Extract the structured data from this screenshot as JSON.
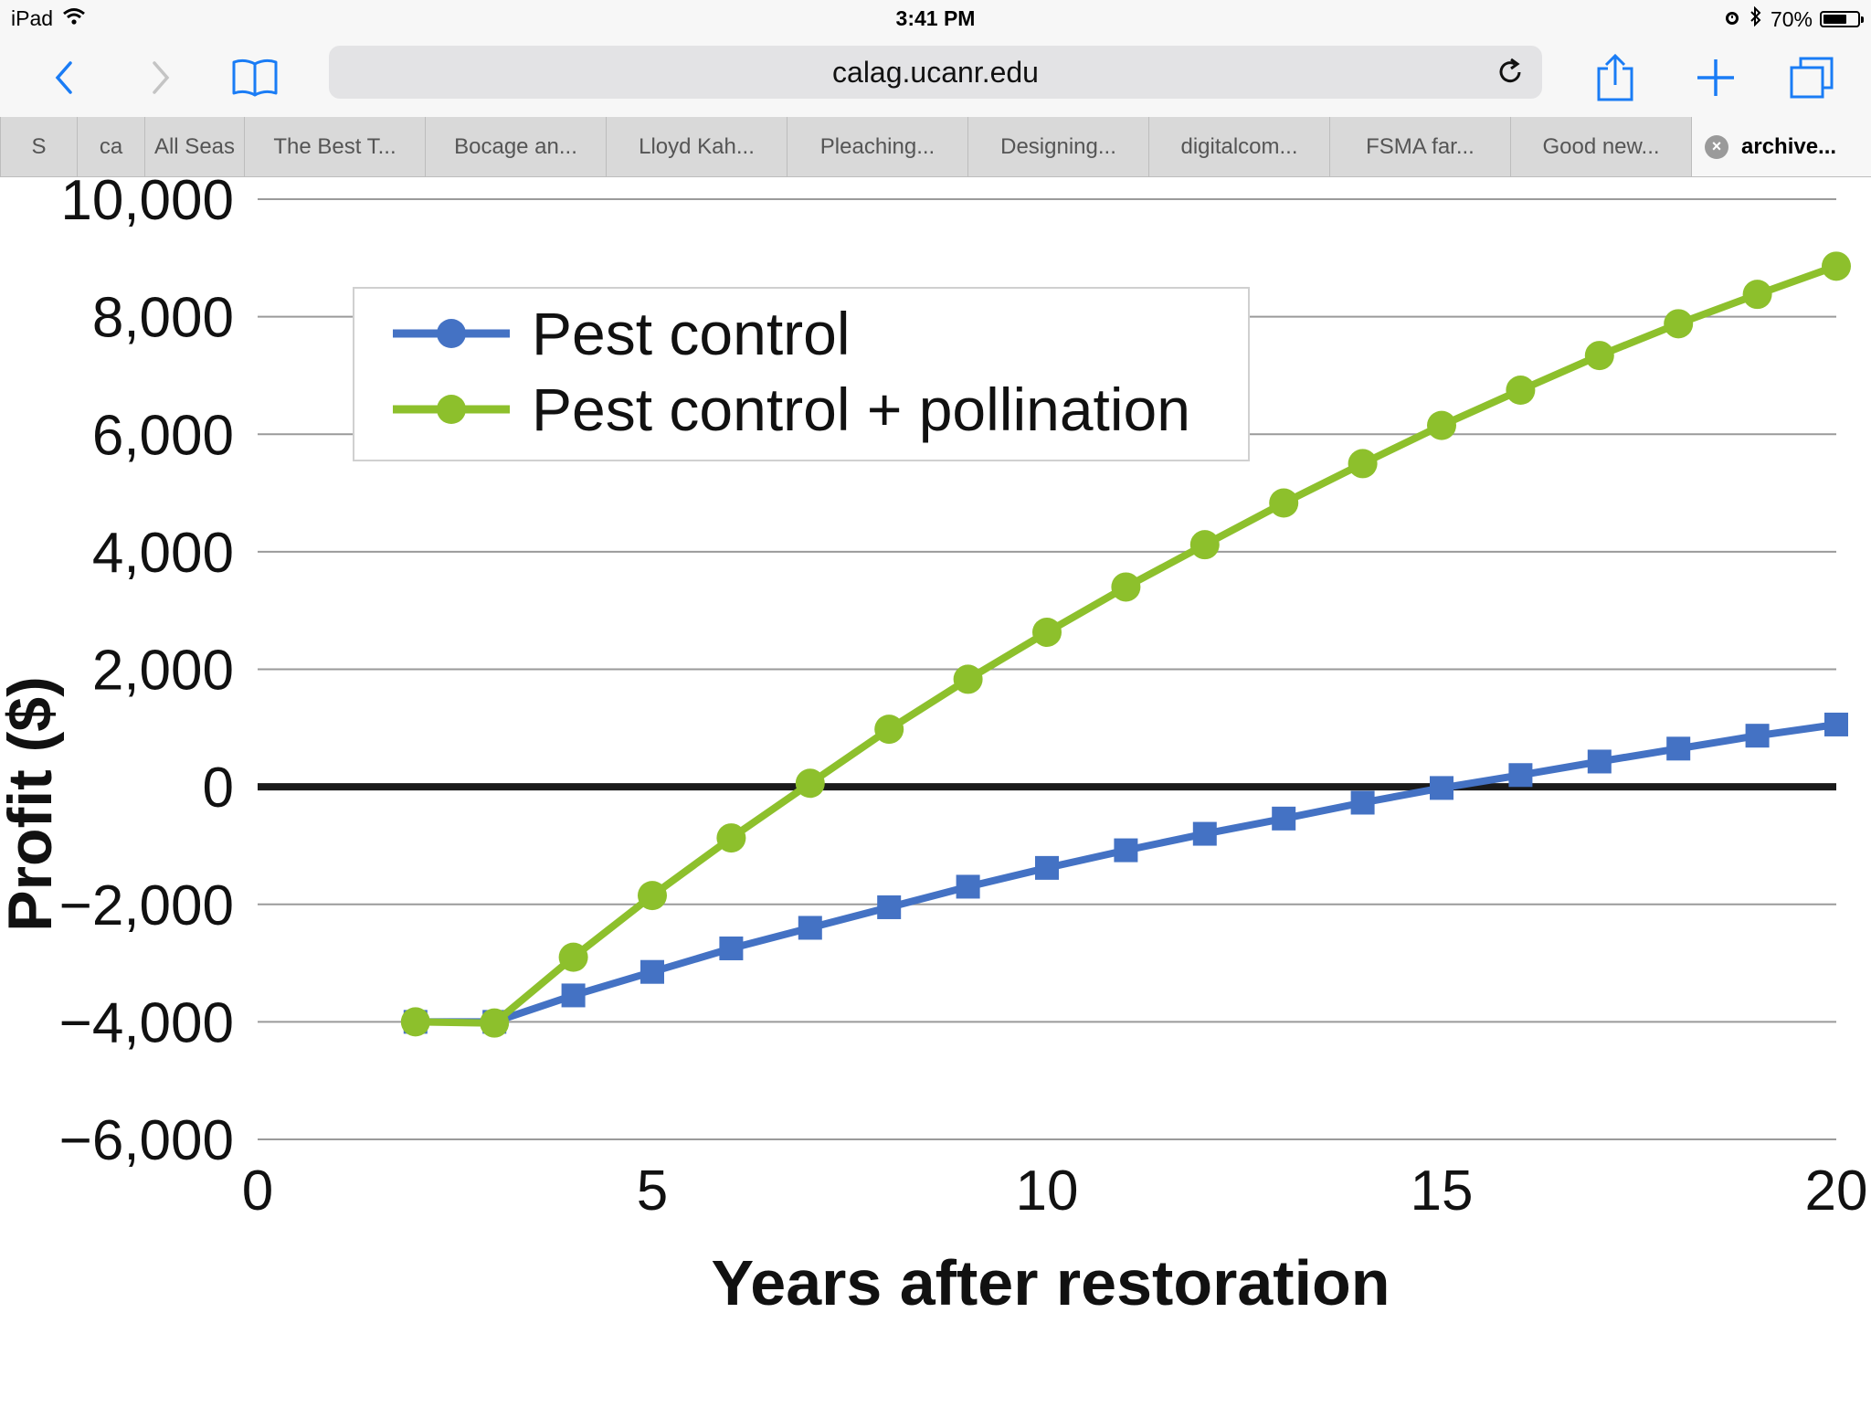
{
  "status": {
    "device": "iPad",
    "time": "3:41 PM",
    "battery": "70%",
    "battery_fraction": 0.7
  },
  "browser": {
    "url": "calag.ucanr.edu",
    "tabs": [
      {
        "label": "S"
      },
      {
        "label": "ca"
      },
      {
        "label": "All Seas"
      },
      {
        "label": "The Best T..."
      },
      {
        "label": "Bocage an..."
      },
      {
        "label": "Lloyd Kah..."
      },
      {
        "label": "Pleaching..."
      },
      {
        "label": "Designing..."
      },
      {
        "label": "digitalcom..."
      },
      {
        "label": "FSMA far..."
      },
      {
        "label": "Good new..."
      },
      {
        "label": "archive..."
      }
    ]
  },
  "colors": {
    "pest": "#4472c4",
    "pollination": "#8dc02c"
  },
  "chart_data": {
    "type": "line",
    "title": "",
    "xlabel": "Years after restoration",
    "ylabel": "Profit ($)",
    "xlim": [
      0,
      20
    ],
    "ylim": [
      -6000,
      10000
    ],
    "xticks": [
      0,
      5,
      10,
      15,
      20
    ],
    "xtick_labels": [
      "0",
      "5",
      "10",
      "15",
      "20"
    ],
    "yticks": [
      -6000,
      -4000,
      -2000,
      0,
      2000,
      4000,
      6000,
      8000,
      10000
    ],
    "ytick_labels": [
      "−6,000",
      "−4,000",
      "−2,000",
      "0",
      "2,000",
      "4,000",
      "6,000",
      "8,000",
      "10,000"
    ],
    "legend_position": "top-left",
    "series": [
      {
        "name": "Pest control",
        "marker": "square",
        "x": [
          2,
          3,
          4,
          5,
          6,
          7,
          8,
          9,
          10,
          11,
          12,
          13,
          14,
          15,
          16,
          17,
          18,
          19,
          20
        ],
        "values": [
          -4000,
          -4000,
          -3550,
          -3150,
          -2750,
          -2400,
          -2050,
          -1700,
          -1380,
          -1080,
          -800,
          -540,
          -270,
          -20,
          200,
          430,
          650,
          870,
          1060
        ]
      },
      {
        "name": "Pest control + pollination",
        "marker": "circle",
        "x": [
          2,
          3,
          4,
          5,
          6,
          7,
          8,
          9,
          10,
          11,
          12,
          13,
          14,
          15,
          16,
          17,
          18,
          19,
          20
        ],
        "values": [
          -4000,
          -4020,
          -2900,
          -1850,
          -870,
          60,
          980,
          1830,
          2630,
          3400,
          4120,
          4830,
          5500,
          6150,
          6750,
          7340,
          7880,
          8380,
          8860
        ]
      }
    ]
  }
}
